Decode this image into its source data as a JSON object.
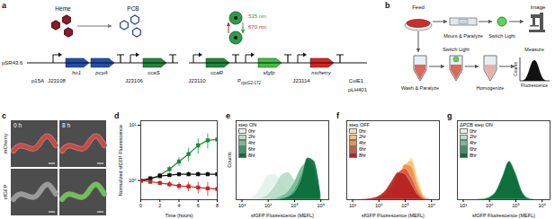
{
  "diagram": {
    "a": {
      "label": "a",
      "molecules": {
        "heme": "Heme",
        "pcb": "PCB"
      },
      "light": [
        {
          "text": "535 nm",
          "color": "#3a9a3a"
        },
        {
          "text": "670 nm",
          "color": "#c0282d"
        }
      ],
      "plasmids": [
        {
          "name": "pSR43.6",
          "parts": [
            {
              "kind": "origin",
              "text": "p15A"
            },
            {
              "kind": "promoter",
              "text": "J23108"
            },
            {
              "kind": "gene",
              "text": "ho1",
              "color": "#1f4fb4"
            },
            {
              "kind": "gene",
              "text": "pcyA",
              "color": "#1f4fb4"
            },
            {
              "kind": "terminator"
            },
            {
              "kind": "promoter",
              "text": "J23106"
            },
            {
              "kind": "gene",
              "text": "ccaS",
              "color": "#1e8a3c"
            },
            {
              "kind": "terminator"
            }
          ]
        },
        {
          "name": "pLH401",
          "parts": [
            {
              "kind": "promoter",
              "text": "J23110"
            },
            {
              "kind": "gene",
              "text": "ccaR",
              "color": "#1e8a3c"
            },
            {
              "kind": "terminator"
            },
            {
              "kind": "promoter",
              "text": "P",
              "sub": "cpcG2-172"
            },
            {
              "kind": "gene",
              "text": "sfgfp",
              "color": "#3cc43c"
            },
            {
              "kind": "terminator"
            },
            {
              "kind": "promoter",
              "text": "J23114"
            },
            {
              "kind": "gene",
              "text": "mcherry",
              "color": "#e02020"
            },
            {
              "kind": "terminator"
            },
            {
              "kind": "origin",
              "text": "ColE1"
            }
          ]
        }
      ]
    },
    "b": {
      "label": "b",
      "feed": "Feed",
      "top": [
        "Mount & Paralyze",
        "Switch Light",
        "Image"
      ],
      "bottom": [
        "Wash & Paralyze",
        "Switch Light",
        "Homogenize",
        "Measure"
      ],
      "histogram": {
        "y": "Counts",
        "x": "Fluorescence"
      }
    },
    "c": {
      "label": "c",
      "times": [
        "0 h",
        "8 h"
      ],
      "channels": [
        {
          "name": "mCherry",
          "color": "#e0302a"
        },
        {
          "name": "sfGFP",
          "color": "#5ccf3a"
        }
      ]
    }
  },
  "chart_data": [
    {
      "panel": "d",
      "type": "line",
      "x_label": "Time (hours)",
      "y_label": "Normalized sfGFP Fluorescence",
      "log": "y",
      "grid": false,
      "marker": "square",
      "x": [
        0,
        1,
        2,
        3,
        4,
        5,
        6,
        7,
        8
      ],
      "xlim": [
        0,
        8
      ],
      "xticks": [
        0,
        2,
        4,
        6,
        8
      ],
      "ylim": [
        0.45,
        12
      ],
      "yticks": [
        {
          "value": 1,
          "label": "10⁰"
        },
        {
          "value": 10,
          "label": "10¹"
        }
      ],
      "series": [
        {
          "color": "#1b8a3a",
          "values": [
            1,
            1.05,
            1.25,
            1.6,
            2.2,
            3.0,
            4.3,
            5.3,
            5.5
          ],
          "error": [
            0,
            0.05,
            0.1,
            0.2,
            0.4,
            0.8,
            1.3,
            1.6,
            1.5
          ]
        },
        {
          "color": "#111111",
          "values": [
            1,
            1.1,
            1.2,
            1.25,
            1.3,
            1.3,
            1.3,
            1.3,
            1.3
          ],
          "error": [
            0,
            0.05,
            0.08,
            0.1,
            0.1,
            0.12,
            0.12,
            0.12,
            0.15
          ]
        },
        {
          "color": "#d02020",
          "values": [
            1,
            0.95,
            0.9,
            0.85,
            0.8,
            0.78,
            0.75,
            0.72,
            0.7
          ],
          "error": [
            0,
            0.05,
            0.08,
            0.1,
            0.12,
            0.15,
            0.18,
            0.2,
            0.2
          ]
        }
      ]
    },
    {
      "panel": "e",
      "type": "area",
      "title": "step ON",
      "x_label": "sfGFP Fluorescence (MEFL)",
      "y_label": "Counts",
      "log": "x",
      "grid": false,
      "legend": "top-left",
      "tick_labels": "x",
      "x": [
        1000,
        1778,
        3162,
        5623,
        10000,
        17783,
        31623,
        56234,
        100000,
        177828,
        316228,
        562341,
        1000000
      ],
      "xlim": [
        600,
        2000000
      ],
      "xticks": [
        {
          "value": 1000,
          "label": "10³"
        },
        {
          "value": 10000,
          "label": "10⁴"
        },
        {
          "value": 100000,
          "label": "10⁵"
        },
        {
          "value": 1000000,
          "label": "10⁶"
        }
      ],
      "ylim": [
        0,
        180
      ],
      "series": [
        {
          "name": "0hr",
          "color": "#e4f2ea",
          "values": [
            0,
            2,
            10,
            30,
            55,
            58,
            42,
            22,
            9,
            3,
            1,
            0,
            0
          ]
        },
        {
          "name": "2hr",
          "color": "#b7dcc7",
          "values": [
            0,
            0,
            1,
            4,
            12,
            30,
            55,
            62,
            45,
            22,
            8,
            2,
            0
          ]
        },
        {
          "name": "4hr",
          "color": "#72bb95",
          "values": [
            0,
            0,
            0,
            0,
            1,
            3,
            8,
            18,
            40,
            72,
            85,
            45,
            6
          ]
        },
        {
          "name": "6hr",
          "color": "#2e9a68",
          "values": [
            0,
            0,
            0,
            0,
            0,
            1,
            3,
            8,
            22,
            55,
            92,
            70,
            12
          ]
        },
        {
          "name": "8hr",
          "color": "#0b6e3a",
          "values": [
            0,
            0,
            0,
            0,
            0,
            0,
            2,
            6,
            16,
            45,
            95,
            88,
            15
          ]
        }
      ]
    },
    {
      "panel": "f",
      "type": "area",
      "title": "step OFF",
      "x_label": "sfGFP Fluorescence (MEFL)",
      "log": "x",
      "grid": false,
      "legend": "top-left",
      "tick_labels": "x",
      "x": [
        1000,
        1778,
        3162,
        5623,
        10000,
        17783,
        31623,
        56234,
        100000,
        177828,
        316228,
        562341,
        1000000
      ],
      "xlim": [
        600,
        2000000
      ],
      "xticks": [
        {
          "value": 1000,
          "label": "10³"
        },
        {
          "value": 10000,
          "label": "10⁴"
        },
        {
          "value": 100000,
          "label": "10⁵"
        },
        {
          "value": 1000000,
          "label": "10⁶"
        }
      ],
      "ylim": [
        0,
        180
      ],
      "series": [
        {
          "name": "0hr",
          "color": "#fbe0b0",
          "values": [
            0,
            0,
            0,
            0,
            1,
            3,
            8,
            25,
            65,
            95,
            50,
            8,
            0
          ]
        },
        {
          "name": "2hr",
          "color": "#f7bd74",
          "values": [
            0,
            0,
            0,
            0,
            1,
            4,
            12,
            35,
            78,
            88,
            40,
            6,
            0
          ]
        },
        {
          "name": "4hr",
          "color": "#ee904c",
          "values": [
            0,
            0,
            0,
            1,
            2,
            6,
            18,
            45,
            80,
            75,
            30,
            4,
            0
          ]
        },
        {
          "name": "6hr",
          "color": "#d95538",
          "values": [
            0,
            0,
            0,
            1,
            4,
            12,
            30,
            60,
            70,
            50,
            18,
            2,
            0
          ]
        },
        {
          "name": "8hr",
          "color": "#b52222",
          "values": [
            0,
            0,
            1,
            3,
            8,
            20,
            42,
            62,
            58,
            35,
            10,
            1,
            0
          ]
        }
      ]
    },
    {
      "panel": "g",
      "type": "area",
      "title": "ΔPCB step ON",
      "x_label": "sfGFP Fluorescence (MEFL)",
      "log": "x",
      "grid": false,
      "legend": "top-left",
      "tick_labels": "x",
      "x": [
        1000,
        1778,
        3162,
        5623,
        10000,
        17783,
        31623,
        56234,
        100000,
        177828,
        316228,
        562341,
        1000000
      ],
      "xlim": [
        600,
        2000000
      ],
      "xticks": [
        {
          "value": 1000,
          "label": "10³"
        },
        {
          "value": 10000,
          "label": "10⁴"
        },
        {
          "value": 100000,
          "label": "10⁵"
        },
        {
          "value": 1000000,
          "label": "10⁶"
        }
      ],
      "ylim": [
        0,
        180
      ],
      "series": [
        {
          "name": "0hr",
          "color": "#e4f2ea",
          "values": [
            0,
            0,
            0,
            1,
            5,
            18,
            50,
            85,
            60,
            18,
            3,
            0,
            0
          ]
        },
        {
          "name": "2hr",
          "color": "#b7dcc7",
          "values": [
            0,
            0,
            0,
            1,
            4,
            16,
            48,
            88,
            62,
            19,
            3,
            0,
            0
          ]
        },
        {
          "name": "4hr",
          "color": "#72bb95",
          "values": [
            0,
            0,
            0,
            1,
            5,
            19,
            52,
            84,
            58,
            17,
            2,
            0,
            0
          ]
        },
        {
          "name": "6hr",
          "color": "#2e9a68",
          "values": [
            0,
            0,
            0,
            1,
            4,
            17,
            50,
            86,
            61,
            18,
            3,
            0,
            0
          ]
        },
        {
          "name": "8hr",
          "color": "#0b6e3a",
          "values": [
            0,
            0,
            0,
            1,
            5,
            18,
            52,
            87,
            59,
            17,
            2,
            0,
            0
          ]
        }
      ]
    }
  ]
}
